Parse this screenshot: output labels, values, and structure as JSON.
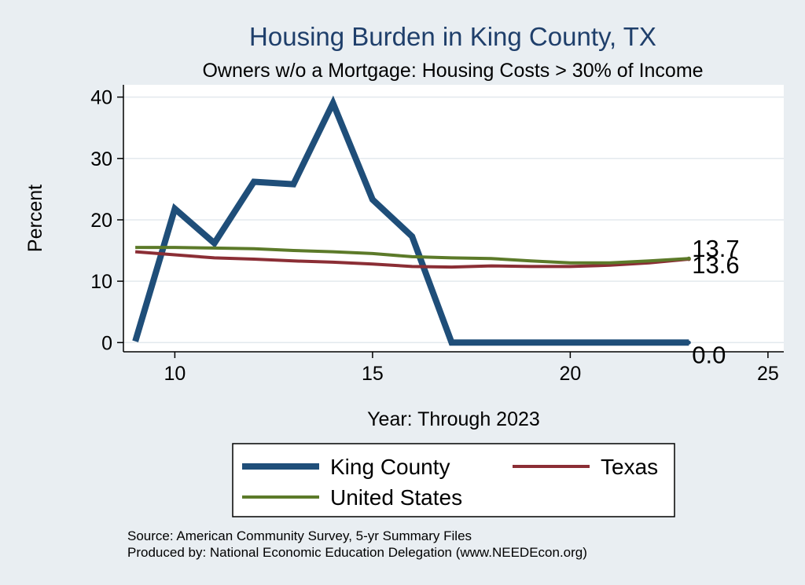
{
  "chart_data": {
    "type": "line",
    "title": "Housing Burden in King County, TX",
    "subtitle": "Owners w/o a Mortgage: Housing Costs > 30% of Income",
    "xlabel": "Year: Through 2023",
    "ylabel": "Percent",
    "xlim": [
      8.7,
      25.4
    ],
    "ylim": [
      -1.5,
      42
    ],
    "x_ticks": [
      10,
      15,
      20,
      25
    ],
    "y_ticks": [
      0,
      10,
      20,
      30,
      40
    ],
    "grid": true,
    "series": [
      {
        "name": "King County",
        "color": "#1f4e79",
        "x": [
          9,
          10,
          11,
          12,
          13,
          14,
          15,
          16,
          17,
          18,
          19,
          20,
          21,
          22,
          23
        ],
        "values": [
          0.2,
          21.8,
          16.2,
          26.2,
          25.8,
          39.0,
          23.3,
          17.3,
          0.0,
          0.0,
          0.0,
          0.0,
          0.0,
          0.0,
          0.0
        ],
        "end_label": "0.0"
      },
      {
        "name": "Texas",
        "color": "#8b2e35",
        "x": [
          9,
          10,
          11,
          12,
          13,
          14,
          15,
          16,
          17,
          18,
          19,
          20,
          21,
          22,
          23
        ],
        "values": [
          14.8,
          14.3,
          13.8,
          13.6,
          13.3,
          13.1,
          12.8,
          12.4,
          12.3,
          12.5,
          12.4,
          12.4,
          12.6,
          13.0,
          13.6
        ],
        "end_label": "13.6"
      },
      {
        "name": "United States",
        "color": "#5c7a29",
        "x": [
          9,
          10,
          11,
          12,
          13,
          14,
          15,
          16,
          17,
          18,
          19,
          20,
          21,
          22,
          23
        ],
        "values": [
          15.5,
          15.5,
          15.4,
          15.3,
          15.0,
          14.8,
          14.5,
          14.0,
          13.8,
          13.7,
          13.3,
          13.0,
          13.0,
          13.3,
          13.7
        ],
        "end_label": "13.7"
      }
    ],
    "legend_position": "bottom"
  },
  "notes": {
    "source": "Source: American Community Survey, 5-yr Summary Files",
    "produced": "Produced by: National Economic Education Delegation (www.NEEDEcon.org)"
  }
}
